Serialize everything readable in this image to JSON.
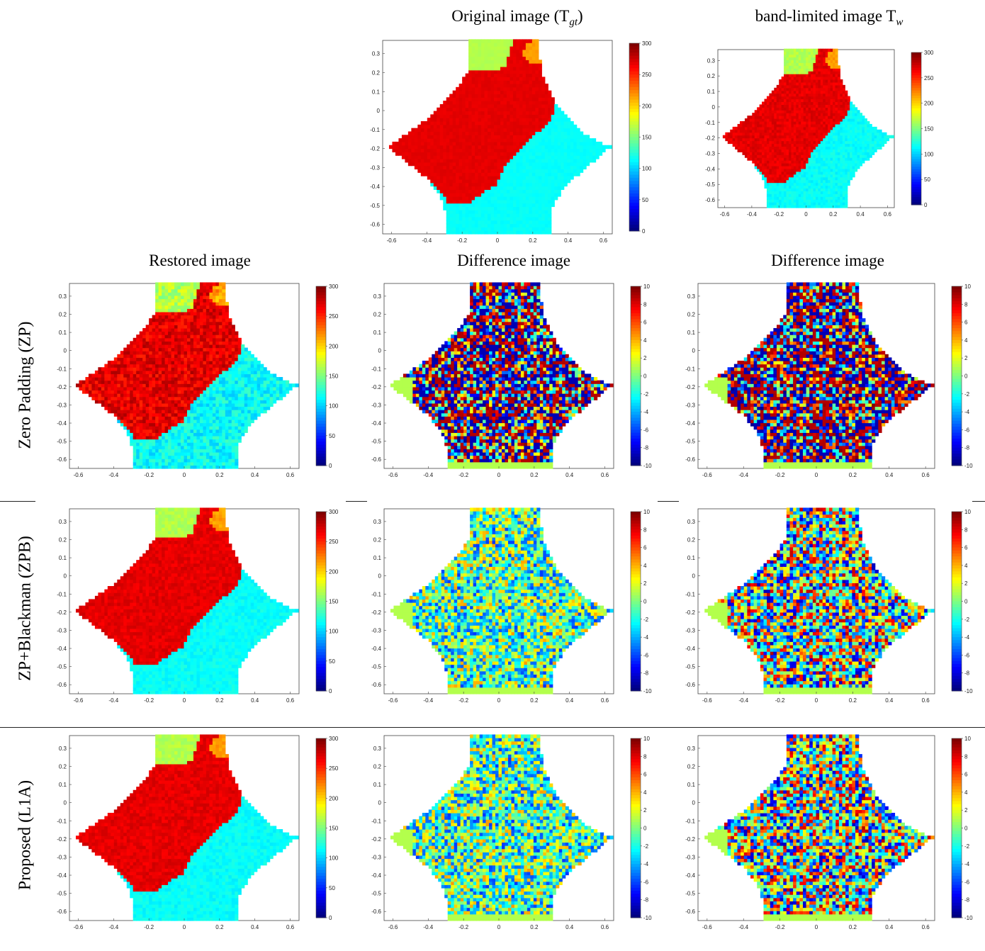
{
  "titles": {
    "original": "Original image (T",
    "original_sub": "gt",
    "band_limited": "band-limited image T",
    "band_limited_sub": "w",
    "restored": "Restored image",
    "difference_1": "Difference image",
    "difference_2": "Difference image"
  },
  "row_labels": {
    "zp": "Zero Padding (ZP)",
    "zpb": "ZP+Blackman (ZPB)",
    "l1a": "Proposed (L1A)"
  },
  "axes": {
    "x_ticks": [
      "-0.6",
      "-0.4",
      "-0.2",
      "0",
      "0.2",
      "0.4",
      "0.6"
    ],
    "y_ticks": [
      "0.3",
      "0.2",
      "0.1",
      "0",
      "-0.1",
      "-0.2",
      "-0.3",
      "-0.4",
      "-0.5",
      "-0.6"
    ],
    "x_range": [
      -0.65,
      0.65
    ],
    "y_range": [
      -0.65,
      0.37
    ]
  },
  "colorbars": {
    "temperature": {
      "ticks": [
        "300",
        "250",
        "200",
        "150",
        "100",
        "50",
        "0"
      ],
      "range": [
        0,
        300
      ]
    },
    "difference": {
      "ticks": [
        "10",
        "8",
        "6",
        "4",
        "2",
        "0",
        "-2",
        "-4",
        "-6",
        "-8",
        "-10"
      ],
      "range": [
        -10,
        10
      ]
    }
  },
  "colormap": "jet",
  "panels": [
    {
      "id": "original",
      "kind": "temp",
      "style": "gt",
      "colorbar": "temperature"
    },
    {
      "id": "band-limited",
      "kind": "temp",
      "style": "smooth",
      "colorbar": "temperature"
    },
    {
      "id": "zp-restored",
      "kind": "temp",
      "style": "noisy",
      "colorbar": "temperature"
    },
    {
      "id": "zp-diff-gt",
      "kind": "diff",
      "style": "wild",
      "colorbar": "difference"
    },
    {
      "id": "zp-diff-w",
      "kind": "diff",
      "style": "wild",
      "colorbar": "difference"
    },
    {
      "id": "zpb-restored",
      "kind": "temp",
      "style": "smooth",
      "colorbar": "temperature"
    },
    {
      "id": "zpb-diff-gt",
      "kind": "diff",
      "style": "blob",
      "colorbar": "difference"
    },
    {
      "id": "zpb-diff-w",
      "kind": "diff",
      "style": "speckle",
      "colorbar": "difference"
    },
    {
      "id": "l1a-restored",
      "kind": "temp",
      "style": "smooth",
      "colorbar": "temperature"
    },
    {
      "id": "l1a-diff-gt",
      "kind": "diff",
      "style": "blob",
      "colorbar": "difference"
    },
    {
      "id": "l1a-diff-w",
      "kind": "diff",
      "style": "speckle",
      "colorbar": "difference"
    }
  ]
}
